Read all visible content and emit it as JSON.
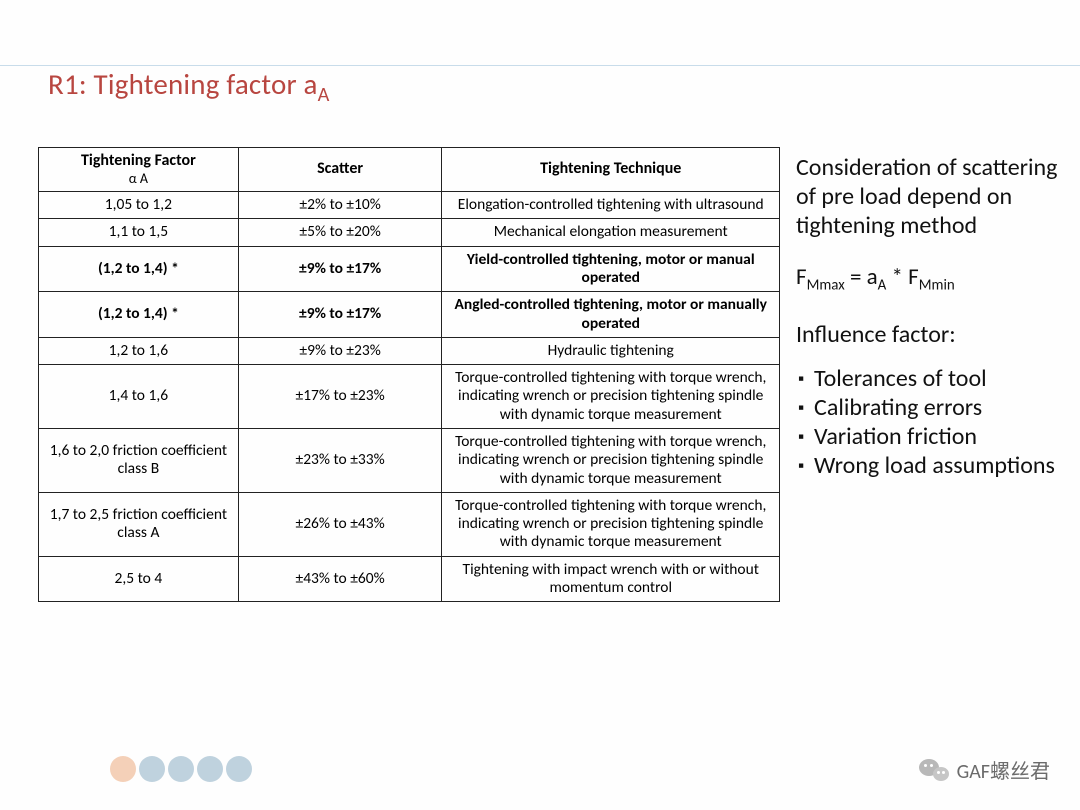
{
  "title_main": "R1: Tightening factor a",
  "title_sub": "A",
  "table": {
    "headers": {
      "col1": "Tightening Factor",
      "col1_sub": "α A",
      "col2": "Scatter",
      "col3": "Tightening Technique"
    },
    "rows": [
      {
        "factor": "1,05 to 1,2",
        "scatter": "±2% to ±10%",
        "technique": "Elongation-controlled tightening with ultrasound",
        "bold": false
      },
      {
        "factor": "1,1 to 1,5",
        "scatter": "±5% to ±20%",
        "technique": "Mechanical elongation measurement",
        "bold": false
      },
      {
        "factor": "(1,2 to 1,4) *",
        "scatter": "±9% to ±17%",
        "technique": "Yield-controlled tightening, motor or manual operated",
        "bold": true
      },
      {
        "factor": "(1,2 to 1,4) *",
        "scatter": "±9% to ±17%",
        "technique": "Angled-controlled tightening, motor or manually operated",
        "bold": true
      },
      {
        "factor": "1,2 to 1,6",
        "scatter": "±9% to ±23%",
        "technique": "Hydraulic tightening",
        "bold": false
      },
      {
        "factor": "1,4 to 1,6",
        "scatter": "±17% to ±23%",
        "technique": "Torque-controlled tightening with torque wrench, indicating wrench or precision tightening spindle with dynamic torque measurement",
        "bold": false
      },
      {
        "factor": "1,6 to 2,0 friction coefficient class B",
        "scatter": "±23% to ±33%",
        "technique": "Torque-controlled tightening with torque wrench, indicating wrench or precision tightening spindle with dynamic torque measurement",
        "bold": false
      },
      {
        "factor": "1,7 to 2,5 friction coefficient class A",
        "scatter": "±26% to ±43%",
        "technique": "Torque-controlled tightening with torque wrench, indicating wrench or precision tightening spindle with dynamic torque measurement",
        "bold": false
      },
      {
        "factor": "2,5 to 4",
        "scatter": "±43% to ±60%",
        "technique": "Tightening with impact wrench with or without momentum control",
        "bold": false
      }
    ]
  },
  "side": {
    "consideration": "Consideration of scattering of pre load depend on tightening method",
    "formula": {
      "lhs": "F",
      "lhs_sub": "Mmax",
      "eq": " = a",
      "a_sub": "A",
      "star": " * F",
      "rhs_sub": "Mmin"
    },
    "influence_title": "Influence factor:",
    "bullets": [
      "Tolerances of tool",
      "Calibrating errors",
      "Variation friction",
      "Wrong load assumptions"
    ]
  },
  "dot_colors": [
    "#f4d0b8",
    "#bfd2de",
    "#bfd2de",
    "#bfd2de",
    "#bfd2de"
  ],
  "footer_text": "GAF螺丝君"
}
